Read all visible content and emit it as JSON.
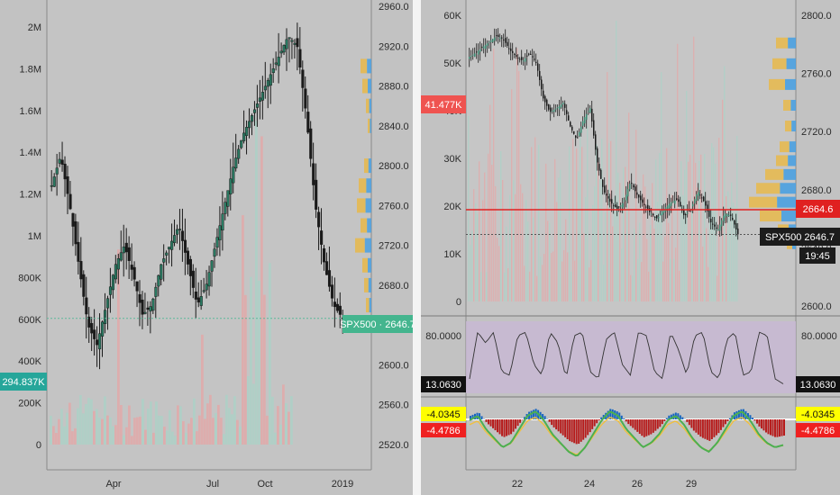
{
  "chart_data": [
    {
      "type": "candlestick",
      "panel": "left",
      "instrument": "SPX500",
      "current_price": 2646.7,
      "current_volume_label": "294.837K",
      "x_ticks": [
        "Apr",
        "Jul",
        "Oct",
        "2019"
      ],
      "volume_axis": {
        "ticks": [
          "2M",
          "1.8M",
          "1.6M",
          "1.4M",
          "1.2M",
          "1M",
          "800K",
          "600K",
          "400K",
          "200K",
          "0"
        ],
        "ylim": [
          0,
          2000000
        ]
      },
      "price_axis": {
        "ticks": [
          "2960.0",
          "2920.0",
          "2880.0",
          "2840.0",
          "2800.0",
          "2760.0",
          "2720.0",
          "2680.0",
          "2640.0",
          "2600.0",
          "2560.0",
          "2520.0"
        ],
        "ylim": [
          2520,
          2960
        ]
      },
      "price_close_approx": [
        2780,
        2810,
        2760,
        2700,
        2640,
        2620,
        2660,
        2700,
        2720,
        2690,
        2650,
        2660,
        2700,
        2720,
        2740,
        2700,
        2660,
        2680,
        2720,
        2760,
        2800,
        2830,
        2850,
        2870,
        2890,
        2910,
        2930,
        2920,
        2850,
        2760,
        2700,
        2660,
        2646.7
      ],
      "volume_profile_note": "horizontal volume-at-price histogram on right edge"
    },
    {
      "type": "candlestick",
      "panel": "right-top",
      "instrument": "SPX500",
      "current_price": 2646.7,
      "red_line_price": 2664.6,
      "volume_marker_label": "41.477K",
      "countdown": "19:45",
      "x_ticks": [
        "22",
        "24",
        "26",
        "29"
      ],
      "volume_axis": {
        "ticks": [
          "60K",
          "50K",
          "40K",
          "30K",
          "20K",
          "10K",
          "0"
        ],
        "ylim": [
          0,
          60000
        ]
      },
      "price_axis": {
        "ticks": [
          "2800.0",
          "2760.0",
          "2720.0",
          "2680.0",
          "2640.0",
          "2600.0"
        ],
        "ylim": [
          2595,
          2805
        ]
      },
      "price_close_approx": [
        2775,
        2778,
        2782,
        2786,
        2790,
        2788,
        2780,
        2775,
        2772,
        2778,
        2770,
        2745,
        2735,
        2738,
        2742,
        2725,
        2715,
        2730,
        2738,
        2700,
        2678,
        2670,
        2665,
        2670,
        2685,
        2675,
        2668,
        2662,
        2658,
        2665,
        2670,
        2672,
        2660,
        2665,
        2678,
        2670,
        2655,
        2650,
        2662,
        2660,
        2646.7
      ]
    },
    {
      "type": "line",
      "panel": "right-oscillator",
      "current_value": "13.0630",
      "axis": {
        "ticks": [
          "80.0000"
        ],
        "ylim": [
          0,
          100
        ]
      },
      "values_approx": [
        20,
        85,
        70,
        85,
        30,
        25,
        80,
        85,
        40,
        25,
        85,
        70,
        20,
        80,
        85,
        30,
        20,
        75,
        85,
        40,
        25,
        85,
        80,
        30,
        20,
        85,
        60,
        25,
        80,
        85,
        30,
        20,
        75,
        85,
        25,
        30,
        85,
        80,
        20,
        13.063
      ]
    },
    {
      "type": "area",
      "panel": "right-macd",
      "labels": [
        "-4.0345",
        "-4.4786"
      ],
      "values_approx": [
        1,
        2,
        -1,
        -3,
        -5,
        -4,
        -1,
        2,
        3,
        1,
        -2,
        -4,
        -6,
        -7,
        -5,
        -2,
        1,
        3,
        2,
        -1,
        -3,
        -5,
        -4,
        -2,
        1,
        2,
        0,
        -3,
        -5,
        -6,
        -4,
        -1,
        2,
        3,
        1,
        -2,
        -4,
        -5,
        -4.5
      ]
    }
  ]
}
